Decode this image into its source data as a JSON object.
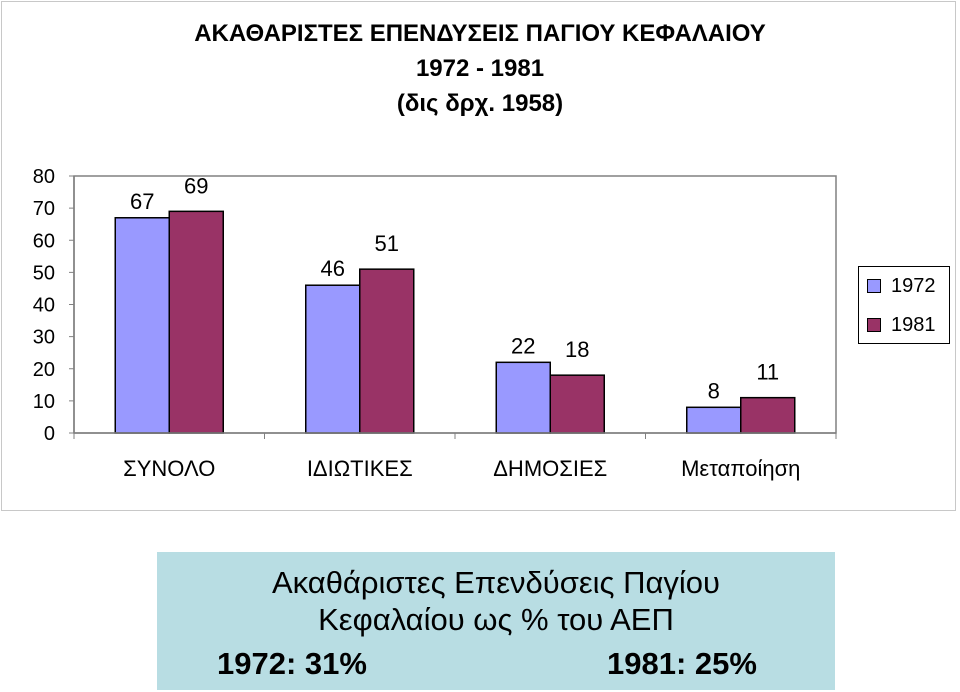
{
  "chart_data": {
    "type": "bar",
    "title": "ΑΚΑΘΑΡΙΣΤΕΣ ΕΠΕΝΔΥΣΕΙΣ ΠΑΓΙΟΥ ΚΕΦΑΛΑΙΟΥ",
    "subtitle_1": "1972 - 1981",
    "subtitle_2": "(δις δρχ. 1958)",
    "categories": [
      "ΣΥΝΟΛΟ",
      "ΙΔΙΩΤΙΚΕΣ",
      "ΔΗΜΟΣΙΕΣ",
      "Μεταποίηση"
    ],
    "series": [
      {
        "name": "1972",
        "values": [
          67,
          46,
          22,
          8
        ],
        "color": "#9999ff"
      },
      {
        "name": "1981",
        "values": [
          69,
          51,
          18,
          11
        ],
        "color": "#993366"
      }
    ],
    "ylim": [
      0,
      80
    ],
    "yticks": [
      0,
      10,
      20,
      30,
      40,
      50,
      60,
      70,
      80
    ],
    "grid": false,
    "legend_position": "right",
    "data_labels": true
  },
  "caption": {
    "line1": "Ακαθάριστες Επενδύσεις Παγίου",
    "line2": "Κεφαλαίου ως % του ΑΕΠ",
    "stat_1972": "1972: 31%",
    "stat_1981": "1981: 25%",
    "background": "#b8dde3"
  }
}
